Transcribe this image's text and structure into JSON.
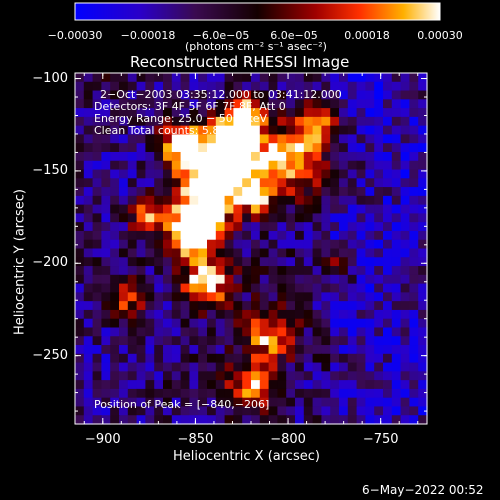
{
  "chart_data": {
    "type": "heatmap",
    "title": "Reconstructed RHESSI Image",
    "xlabel": "Heliocentric X (arcsec)",
    "ylabel": "Heliocentric Y (arcsec)",
    "xlim": [
      -915,
      -725
    ],
    "ylim": [
      -287,
      -97
    ],
    "x_ticks": [
      {
        "value": -900,
        "label": "−900"
      },
      {
        "value": -850,
        "label": "−850"
      },
      {
        "value": -800,
        "label": "−800"
      },
      {
        "value": -750,
        "label": "−750"
      }
    ],
    "y_ticks": [
      {
        "value": -100,
        "label": "−100"
      },
      {
        "value": -150,
        "label": "−150"
      },
      {
        "value": -200,
        "label": "−200"
      },
      {
        "value": -250,
        "label": "−250"
      }
    ],
    "colorbar": {
      "min": -0.0003,
      "max": 0.0003,
      "unit_label": "(photons cm⁻² s⁻¹ asec⁻²)",
      "tick_labels": [
        {
          "value": -0.0003,
          "label": "−0.00030"
        },
        {
          "value": -0.00018,
          "label": "−0.00018"
        },
        {
          "value": -6e-05,
          "label": "−6.0e−05"
        },
        {
          "value": 6e-05,
          "label": "6.0e−05"
        },
        {
          "value": 0.00018,
          "label": "0.00018"
        },
        {
          "value": 0.0003,
          "label": "0.00030"
        }
      ]
    },
    "annotations": {
      "time_range": "2−Oct−2003 03:35:12.000 to 03:41:12.000",
      "detectors": "Detectors: 3F 4F 5F 6F 7F 8F, Att 0",
      "energy_range": "Energy Range: 25.0 − 50.0 keV",
      "clean_counts": "Clean     Total counts: 5.84E+03",
      "peak": "Position of Peak = [−840,−206]"
    },
    "peak_position": [
      -840,
      -206
    ],
    "grid": false
  },
  "footer": {
    "timestamp": "6−May−2022 00:52"
  },
  "colors": {
    "background": "#000000",
    "axis": "#ffffff"
  }
}
